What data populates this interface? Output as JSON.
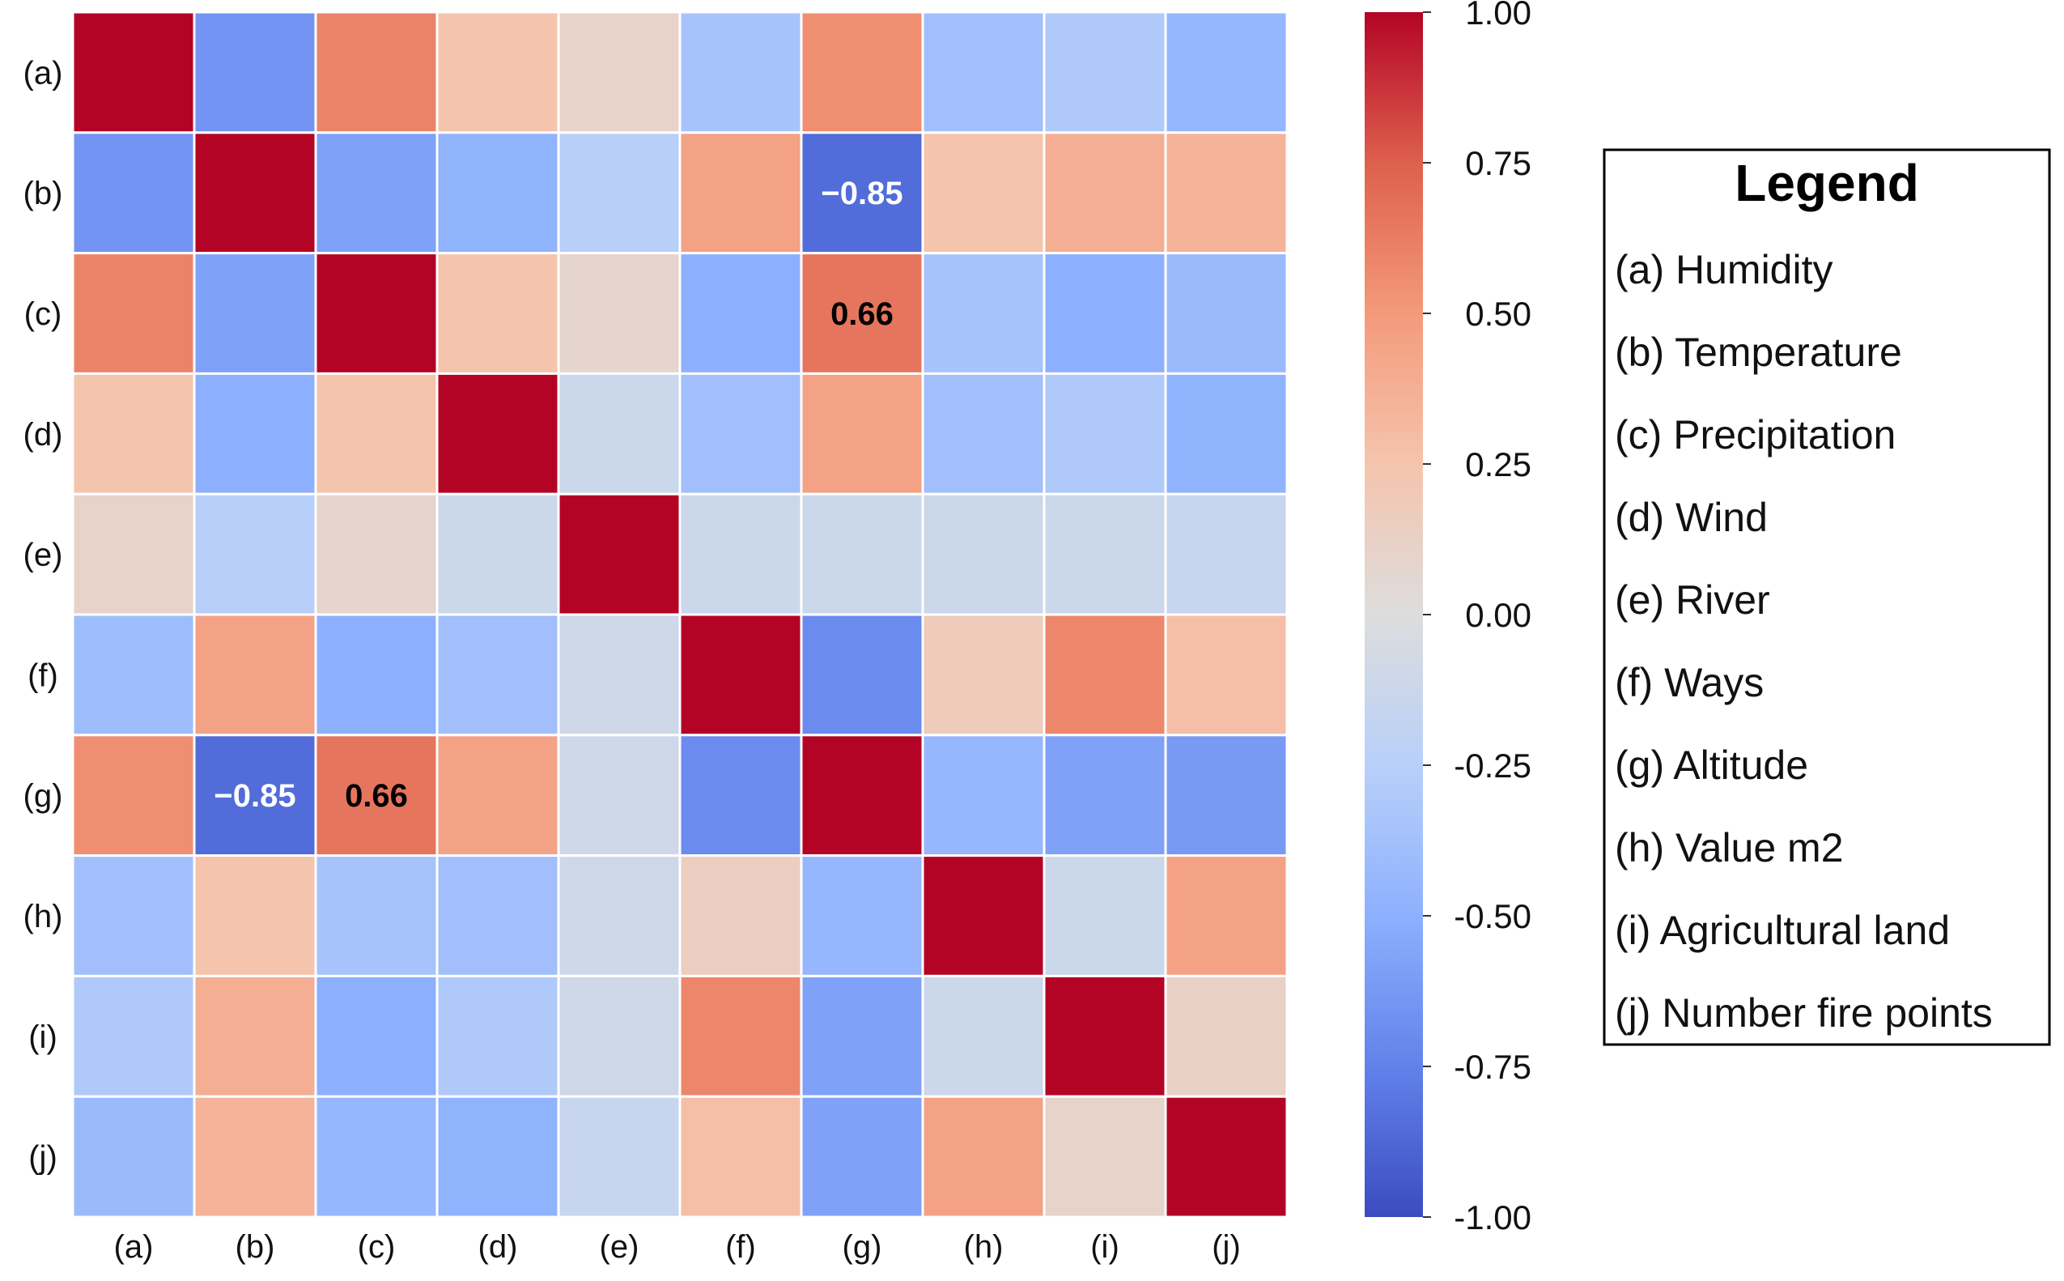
{
  "chart_data": {
    "type": "heatmap",
    "title": "",
    "xlabel": "",
    "ylabel": "",
    "row_labels": [
      "(a)",
      "(b)",
      "(c)",
      "(d)",
      "(e)",
      "(f)",
      "(g)",
      "(h)",
      "(i)",
      "(j)"
    ],
    "col_labels": [
      "(a)",
      "(b)",
      "(c)",
      "(d)",
      "(e)",
      "(f)",
      "(g)",
      "(h)",
      "(i)",
      "(j)"
    ],
    "values": [
      [
        1.0,
        -0.65,
        0.6,
        0.25,
        0.1,
        -0.35,
        0.55,
        -0.38,
        -0.3,
        -0.45
      ],
      [
        -0.65,
        1.0,
        -0.58,
        -0.48,
        -0.25,
        0.45,
        -0.85,
        0.25,
        0.38,
        0.35
      ],
      [
        0.6,
        -0.58,
        1.0,
        0.25,
        0.08,
        -0.5,
        0.66,
        -0.35,
        -0.5,
        -0.42
      ],
      [
        0.25,
        -0.5,
        0.25,
        1.0,
        -0.12,
        -0.38,
        0.45,
        -0.38,
        -0.3,
        -0.48
      ],
      [
        0.1,
        -0.25,
        0.08,
        -0.12,
        1.0,
        -0.12,
        -0.12,
        -0.12,
        -0.12,
        -0.15
      ],
      [
        -0.4,
        0.45,
        -0.5,
        -0.38,
        -0.1,
        1.0,
        -0.7,
        0.18,
        0.58,
        0.28
      ],
      [
        0.55,
        -0.85,
        0.66,
        0.45,
        -0.1,
        -0.7,
        1.0,
        -0.45,
        -0.58,
        -0.62
      ],
      [
        -0.38,
        0.25,
        -0.35,
        -0.38,
        -0.1,
        0.15,
        -0.45,
        1.0,
        -0.12,
        0.45
      ],
      [
        -0.3,
        0.38,
        -0.5,
        -0.3,
        -0.1,
        0.58,
        -0.58,
        -0.12,
        1.0,
        0.12
      ],
      [
        -0.42,
        0.35,
        -0.45,
        -0.48,
        -0.15,
        0.28,
        -0.58,
        0.45,
        0.1,
        1.0
      ]
    ],
    "annotations": [
      {
        "row": 1,
        "col": 6,
        "text": "−0.85"
      },
      {
        "row": 2,
        "col": 6,
        "text": "0.66"
      },
      {
        "row": 6,
        "col": 1,
        "text": "−0.85"
      },
      {
        "row": 6,
        "col": 2,
        "text": "0.66"
      }
    ],
    "colorbar": {
      "range": [
        -1.0,
        1.0
      ],
      "ticks": [
        "1.00",
        "0.75",
        "0.50",
        "0.25",
        "0.00",
        "-0.25",
        "-0.50",
        "-0.75",
        "-1.00"
      ],
      "tick_values": [
        1.0,
        0.75,
        0.5,
        0.25,
        0.0,
        -0.25,
        -0.5,
        -0.75,
        -1.0
      ],
      "colormap": "coolwarm",
      "colors": {
        "low": "#3b4cc0",
        "mid": "#dddddd",
        "high": "#b40426"
      }
    },
    "legend": {
      "title": "Legend",
      "placement": "right",
      "items": [
        "(a) Humidity",
        "(b) Temperature",
        "(c) Precipitation",
        "(d) Wind",
        "(e) River",
        "(f) Ways",
        "(g) Altitude",
        "(h) Value m2",
        "(i) Agricultural land",
        "(j) Number fire points"
      ]
    }
  }
}
